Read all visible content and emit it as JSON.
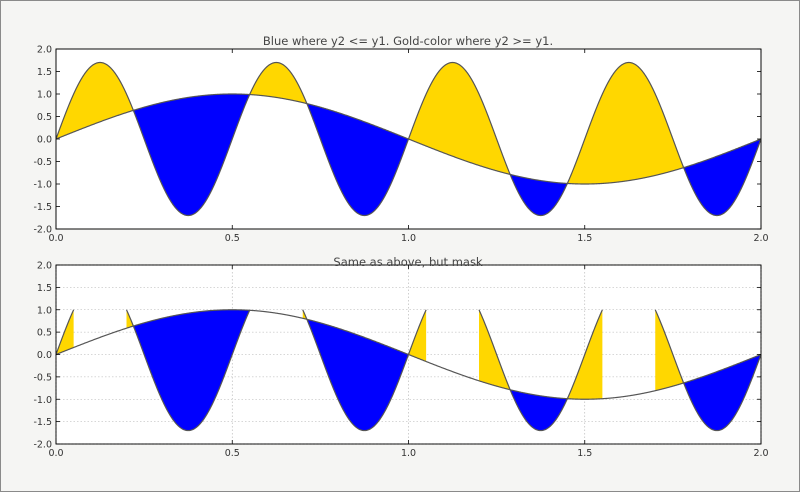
{
  "chart_data": [
    {
      "type": "area",
      "title": "Blue where y2 <= y1. Gold-color where y2 >= y1.",
      "xlabel": "",
      "ylabel": "",
      "xlim": [
        0.0,
        2.0
      ],
      "ylim": [
        -2.0,
        2.0
      ],
      "grid": false,
      "x_ticks": [
        "0.0",
        "0.5",
        "1.0",
        "1.5",
        "2.0"
      ],
      "y_ticks": [
        "2.0",
        "1.5",
        "1.0",
        "0.5",
        "0.0",
        "-0.5",
        "-1.0",
        "-1.5",
        "-2.0"
      ],
      "series": [
        {
          "expr": "sin(pi*x)",
          "x": [
            0,
            0.25,
            0.5,
            0.75,
            1.0,
            1.25,
            1.5,
            1.75,
            2.0
          ],
          "values": [
            0,
            0.71,
            1.0,
            0.71,
            0,
            -0.71,
            -1.0,
            -0.71,
            0
          ]
        },
        {
          "expr": "1.7*sin(4*pi*x)",
          "x": [
            0,
            0.125,
            0.25,
            0.375,
            0.5,
            0.625,
            0.75,
            0.875,
            1.0
          ],
          "values": [
            0,
            1.7,
            0,
            -1.7,
            0,
            1.7,
            0,
            -1.7,
            0
          ]
        }
      ],
      "fill_colors": {
        "y2_le_y1": "#0000ff",
        "y2_ge_y1": "#ffd700"
      },
      "mask": false
    },
    {
      "type": "area",
      "title": "Same as above, but mask",
      "xlabel": "",
      "ylabel": "",
      "xlim": [
        0.0,
        2.0
      ],
      "ylim": [
        -2.0,
        2.0
      ],
      "grid": true,
      "x_ticks": [
        "0.0",
        "0.5",
        "1.0",
        "1.5",
        "2.0"
      ],
      "y_ticks": [
        "2.0",
        "1.5",
        "1.0",
        "0.5",
        "0.0",
        "-0.5",
        "-1.0",
        "-1.5",
        "-2.0"
      ],
      "series": [
        {
          "expr": "sin(pi*x)",
          "x": [
            0,
            0.25,
            0.5,
            0.75,
            1.0,
            1.25,
            1.5,
            1.75,
            2.0
          ],
          "values": [
            0,
            0.71,
            1.0,
            0.71,
            0,
            -0.71,
            -1.0,
            -0.71,
            0
          ]
        },
        {
          "expr": "1.7*sin(4*pi*x), masked where > 1.0",
          "mask_threshold": 1.0
        }
      ],
      "fill_colors": {
        "y2_le_y1": "#0000ff",
        "y2_ge_y1": "#ffd700"
      },
      "mask": true
    }
  ]
}
